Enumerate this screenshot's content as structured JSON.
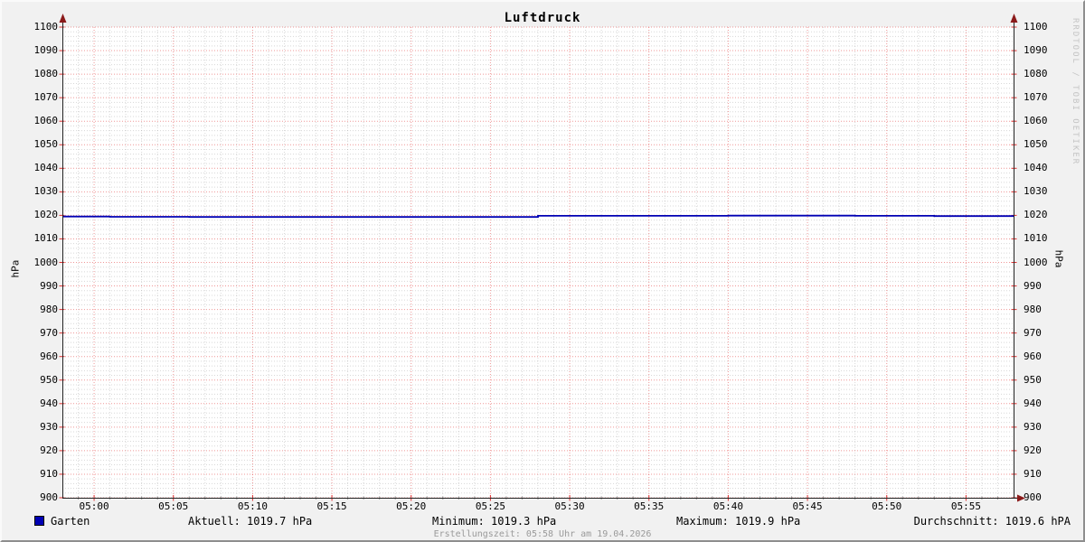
{
  "chart_data": {
    "type": "line",
    "title": "Luftdruck",
    "ylabel": "hPa",
    "ylim": [
      900,
      1100
    ],
    "y_tick_step": 10,
    "y_minor_step": 2,
    "x_minor_step_minutes": 1,
    "x_major_step_minutes": 5,
    "x_range_minutes": 60,
    "x_tick_labels": [
      "05:00",
      "05:05",
      "05:10",
      "05:15",
      "05:20",
      "05:25",
      "05:30",
      "05:35",
      "05:40",
      "05:45",
      "05:50",
      "05:55"
    ],
    "x_first_major_minute": 2,
    "grid": true,
    "legend_position": "bottom",
    "series": [
      {
        "name": "Garten",
        "color": "#0000b4",
        "points_minute_value": [
          [
            0,
            1019.5
          ],
          [
            3,
            1019.5
          ],
          [
            3,
            1019.4
          ],
          [
            8,
            1019.4
          ],
          [
            8,
            1019.3
          ],
          [
            30,
            1019.3
          ],
          [
            30,
            1019.8
          ],
          [
            42,
            1019.8
          ],
          [
            42,
            1019.9
          ],
          [
            50,
            1019.9
          ],
          [
            50,
            1019.8
          ],
          [
            55,
            1019.8
          ],
          [
            55,
            1019.7
          ],
          [
            60,
            1019.7
          ]
        ]
      }
    ],
    "stats": {
      "aktuell": 1019.7,
      "minimum": 1019.3,
      "maximum": 1019.9,
      "durchschnitt": 1019.6
    }
  },
  "legend": {
    "series_label": "Garten",
    "swatch_color": "#0000b4",
    "aktuell": "Aktuell: 1019.7 hPa",
    "minimum": "Minimum: 1019.3 hPa",
    "maximum": "Maximum: 1019.9 hPa",
    "durchschnitt": "Durchschnitt: 1019.6 hPA"
  },
  "footer": "Erstellungszeit: 05:58 Uhr am 19.04.2026",
  "watermark": "RRDTOOL / TOBI OETIKER",
  "colors": {
    "background": "#f1f1f1",
    "canvas": "#ffffff",
    "major_grid": "#e03030",
    "minor_grid": "#8a8a8a",
    "axis": "#222222",
    "arrow": "#8b1a1a",
    "line": "#0000c0",
    "footer_text": "#9a9a9a",
    "watermark_text": "#c4c4c4"
  }
}
